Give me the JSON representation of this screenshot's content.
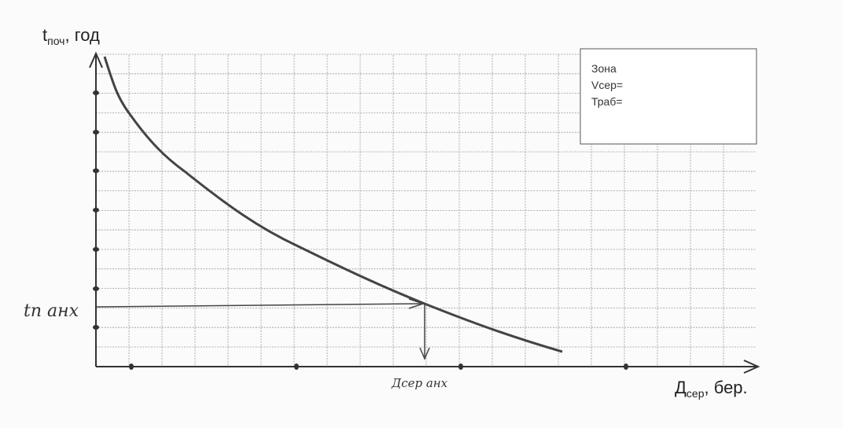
{
  "axes": {
    "y_label": {
      "main": "t",
      "sub": "поч",
      "rest": ", год"
    },
    "x_label": {
      "main": "Д",
      "sub": "сер",
      "rest": ", бер."
    }
  },
  "annotations": {
    "t_marker": "tп анх",
    "d_marker": "Дсер анх"
  },
  "legend_box": {
    "lines": [
      "Зона",
      "Vсер=",
      "Траб="
    ]
  }
}
